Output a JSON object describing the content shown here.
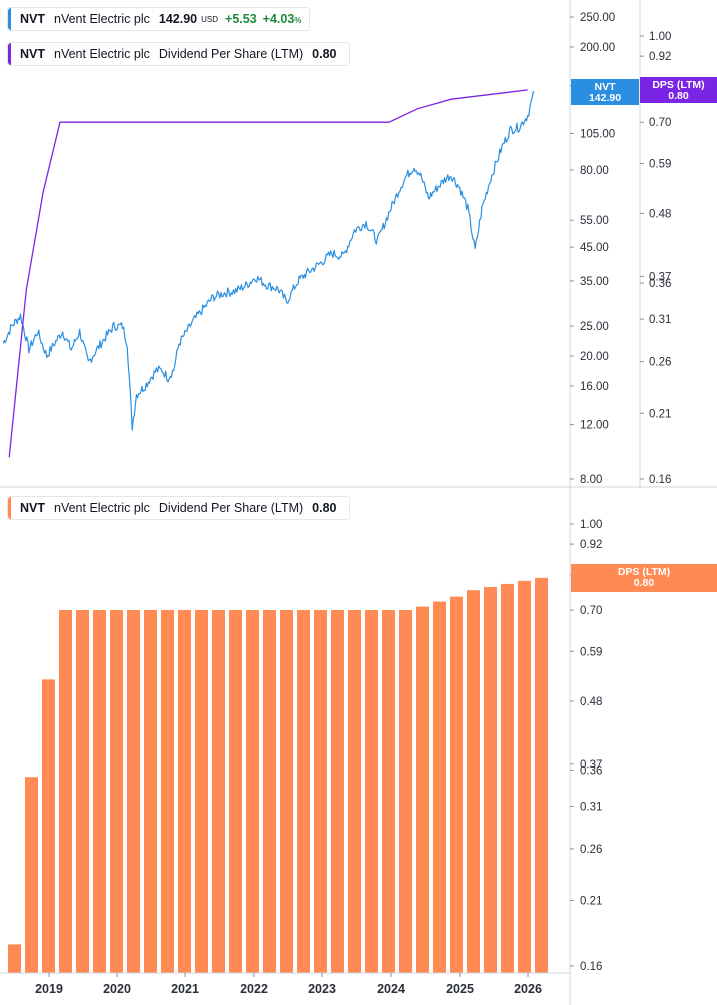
{
  "legend_price": {
    "symbol": "NVT",
    "name": "nVent Electric plc",
    "value": "142.90",
    "unit": "USD",
    "change": "+5.53",
    "change_pct": "+4.03",
    "pct_sign": "%",
    "color": "#2a8fe0"
  },
  "legend_dps_top": {
    "symbol": "NVT",
    "name": "nVent Electric plc",
    "metric": "Dividend Per Share (LTM)",
    "value": "0.80",
    "color": "#7a24e6"
  },
  "legend_dps_bottom": {
    "symbol": "NVT",
    "name": "nVent Electric plc",
    "metric": "Dividend Per Share (LTM)",
    "value": "0.80",
    "color": "#ff8a54"
  },
  "chart_data": [
    {
      "type": "line",
      "panel": "top",
      "price_axis": {
        "scale": "log",
        "ticks": [
          "250.00",
          "200.00",
          "150.00",
          "105.00",
          "80.00",
          "55.00",
          "45.00",
          "35.00",
          "25.00",
          "20.00",
          "16.00",
          "12.00",
          "8.00"
        ]
      },
      "dps_axis": {
        "scale": "log",
        "ticks": [
          "1.00",
          "0.92",
          "0.70",
          "0.59",
          "0.48",
          "0.37",
          "0.36",
          "0.31",
          "0.26",
          "0.21",
          "0.16"
        ]
      },
      "series": [
        {
          "name": "NVT",
          "color": "#2a8fe0",
          "last_label": "142.90",
          "points": [
            [
              "2018-05-01",
              22
            ],
            [
              "2018-06-15",
              25
            ],
            [
              "2018-08-01",
              27
            ],
            [
              "2018-09-15",
              21
            ],
            [
              "2018-11-01",
              24
            ],
            [
              "2018-12-20",
              20
            ],
            [
              "2019-01-31",
              22
            ],
            [
              "2019-03-15",
              24
            ],
            [
              "2019-04-30",
              21
            ],
            [
              "2019-06-15",
              24
            ],
            [
              "2019-07-31",
              19
            ],
            [
              "2019-09-15",
              21
            ],
            [
              "2019-10-31",
              23
            ],
            [
              "2019-12-15",
              25
            ],
            [
              "2020-01-31",
              25
            ],
            [
              "2020-02-25",
              22
            ],
            [
              "2020-03-23",
              11.8
            ],
            [
              "2020-04-15",
              15
            ],
            [
              "2020-05-31",
              16
            ],
            [
              "2020-06-30",
              17
            ],
            [
              "2020-07-31",
              18
            ],
            [
              "2020-08-31",
              18
            ],
            [
              "2020-10-01",
              17
            ],
            [
              "2020-10-31",
              18
            ],
            [
              "2020-11-30",
              22
            ],
            [
              "2020-12-31",
              23.5
            ],
            [
              "2021-02-15",
              26
            ],
            [
              "2021-03-31",
              28
            ],
            [
              "2021-05-31",
              31
            ],
            [
              "2021-07-31",
              32
            ],
            [
              "2021-09-30",
              32.5
            ],
            [
              "2021-11-30",
              34
            ],
            [
              "2022-01-15",
              36
            ],
            [
              "2022-03-15",
              34
            ],
            [
              "2022-05-15",
              33
            ],
            [
              "2022-06-30",
              30
            ],
            [
              "2022-08-31",
              35
            ],
            [
              "2022-10-15",
              37
            ],
            [
              "2022-12-31",
              40
            ],
            [
              "2023-02-28",
              43
            ],
            [
              "2023-04-30",
              42
            ],
            [
              "2023-06-30",
              51
            ],
            [
              "2023-08-31",
              54
            ],
            [
              "2023-10-31",
              47
            ],
            [
              "2023-12-31",
              58
            ],
            [
              "2024-02-29",
              70
            ],
            [
              "2024-03-31",
              76
            ],
            [
              "2024-05-15",
              82
            ],
            [
              "2024-06-15",
              78
            ],
            [
              "2024-07-31",
              65
            ],
            [
              "2024-09-15",
              70
            ],
            [
              "2024-10-31",
              75
            ],
            [
              "2024-11-30",
              77
            ],
            [
              "2025-01-15",
              70
            ],
            [
              "2025-02-28",
              60
            ],
            [
              "2025-04-08",
              44
            ],
            [
              "2025-05-15",
              60
            ],
            [
              "2025-06-30",
              75
            ],
            [
              "2025-08-31",
              95
            ],
            [
              "2025-10-15",
              108
            ],
            [
              "2025-11-30",
              110
            ],
            [
              "2026-01-15",
              120
            ],
            [
              "2026-02-20",
              142.9
            ]
          ]
        },
        {
          "name": "DPS (LTM)",
          "color": "#7a24e6",
          "last_label": "0.80",
          "points": [
            [
              "2018-06-01",
              0.175
            ],
            [
              "2018-09-01",
              0.35
            ],
            [
              "2018-12-01",
              0.525
            ],
            [
              "2019-03-01",
              0.7
            ],
            [
              "2024-01-01",
              0.7
            ],
            [
              "2024-06-01",
              0.74
            ],
            [
              "2024-12-01",
              0.77
            ],
            [
              "2026-01-15",
              0.8
            ]
          ]
        }
      ]
    },
    {
      "type": "bar",
      "panel": "bottom",
      "series": [
        {
          "name": "DPS (LTM)",
          "color": "#ff8a54",
          "last_label": "0.80",
          "values": [
            0.175,
            0.35,
            0.525,
            0.7,
            0.7,
            0.7,
            0.7,
            0.7,
            0.7,
            0.7,
            0.7,
            0.7,
            0.7,
            0.7,
            0.7,
            0.7,
            0.7,
            0.7,
            0.7,
            0.7,
            0.7,
            0.7,
            0.7,
            0.7,
            0.71,
            0.725,
            0.74,
            0.76,
            0.77,
            0.78,
            0.79,
            0.8
          ]
        }
      ],
      "axis": {
        "scale": "log",
        "ticks": [
          "1.00",
          "0.92",
          "0.81",
          "0.70",
          "0.59",
          "0.48",
          "0.37",
          "0.36",
          "0.31",
          "0.26",
          "0.21",
          "0.16"
        ]
      },
      "x_ticks": [
        "2019",
        "2020",
        "2021",
        "2022",
        "2023",
        "2024",
        "2025",
        "2026"
      ]
    }
  ]
}
